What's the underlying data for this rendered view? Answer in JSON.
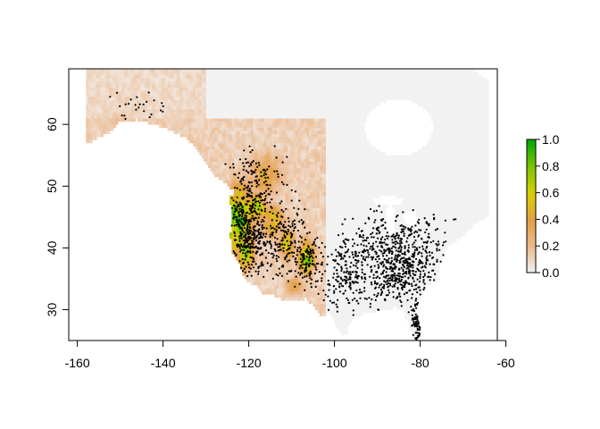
{
  "chart_data": {
    "type": "heatmap",
    "title": "",
    "xlabel": "",
    "ylabel": "",
    "xlim": [
      -162,
      -62
    ],
    "ylim": [
      25,
      69
    ],
    "x_ticks": [
      {
        "value": -160,
        "label": "-160"
      },
      {
        "value": -140,
        "label": "-140"
      },
      {
        "value": -120,
        "label": "-120"
      },
      {
        "value": -100,
        "label": "-100"
      },
      {
        "value": -80,
        "label": "-80"
      },
      {
        "value": -60,
        "label": "-60"
      }
    ],
    "y_ticks": [
      {
        "value": 30,
        "label": "30"
      },
      {
        "value": 40,
        "label": "40"
      },
      {
        "value": 50,
        "label": "50"
      },
      {
        "value": 60,
        "label": "60"
      }
    ],
    "raster_extent": {
      "xmin": -158,
      "xmax": -64,
      "ymin": 25,
      "ymax": 69
    },
    "legend": {
      "placement": "right",
      "range": [
        0,
        1
      ],
      "ticks": [
        {
          "value": 0.0,
          "label": "0.0"
        },
        {
          "value": 0.2,
          "label": "0.2"
        },
        {
          "value": 0.4,
          "label": "0.4"
        },
        {
          "value": 0.6,
          "label": "0.6"
        },
        {
          "value": 0.8,
          "label": "0.8"
        },
        {
          "value": 1.0,
          "label": "1.0"
        }
      ],
      "colors": [
        "#f2f2f2",
        "#ebb98f",
        "#e3a042",
        "#d7d000",
        "#79c500",
        "#00a600"
      ]
    },
    "suitability_regions": [
      {
        "lon": -122.5,
        "lat": 44.5,
        "rx": 3.5,
        "ry": 6,
        "value": 0.95
      },
      {
        "lon": -118,
        "lat": 46.5,
        "rx": 3,
        "ry": 2.5,
        "value": 0.7
      },
      {
        "lon": -114.5,
        "lat": 44.5,
        "rx": 3,
        "ry": 3,
        "value": 0.6
      },
      {
        "lon": -106.5,
        "lat": 38.5,
        "rx": 2,
        "ry": 3,
        "value": 0.85
      },
      {
        "lon": -111,
        "lat": 40.5,
        "rx": 2,
        "ry": 3,
        "value": 0.6
      },
      {
        "lon": -121,
        "lat": 40,
        "rx": 2.5,
        "ry": 4,
        "value": 0.75
      },
      {
        "lon": -116,
        "lat": 52,
        "rx": 5,
        "ry": 4,
        "value": 0.45
      },
      {
        "lon": -150,
        "lat": 60.5,
        "rx": 5,
        "ry": 2,
        "value": 0.2
      },
      {
        "lon": -109,
        "lat": 34,
        "rx": 3,
        "ry": 2,
        "value": 0.35
      }
    ],
    "point_clusters": [
      {
        "lon": -120,
        "lat": 43,
        "sx": 3,
        "sy": 5,
        "n": 420
      },
      {
        "lon": -112,
        "lat": 41,
        "sx": 3.5,
        "sy": 4,
        "n": 180
      },
      {
        "lon": -106,
        "lat": 38,
        "sx": 2,
        "sy": 3,
        "n": 120
      },
      {
        "lon": -118,
        "lat": 51,
        "sx": 5,
        "sy": 3,
        "n": 120
      },
      {
        "lon": -85,
        "lat": 38,
        "sx": 7,
        "sy": 5,
        "n": 700
      },
      {
        "lon": -97,
        "lat": 36,
        "sx": 4,
        "sy": 4,
        "n": 200
      },
      {
        "lon": -80.5,
        "lat": 28,
        "sx": 1,
        "sy": 2,
        "n": 60
      },
      {
        "lon": -145,
        "lat": 62,
        "sx": 6,
        "sy": 2,
        "n": 25
      }
    ],
    "point_color": "#000000"
  }
}
